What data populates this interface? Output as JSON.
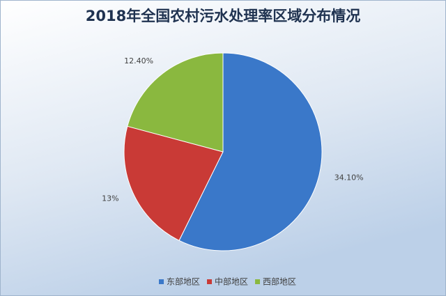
{
  "chart_data": {
    "type": "pie",
    "title": "2018年全国农村污水处理率区域分布情况",
    "categories": [
      "东部地区",
      "中部地区",
      "西部地区"
    ],
    "values": [
      34.1,
      13,
      12.4
    ],
    "value_labels": [
      "34.10%",
      "13%",
      "12.40%"
    ],
    "colors": [
      "#3a78c9",
      "#c93a36",
      "#8ab83f"
    ],
    "legend": "bottom"
  }
}
